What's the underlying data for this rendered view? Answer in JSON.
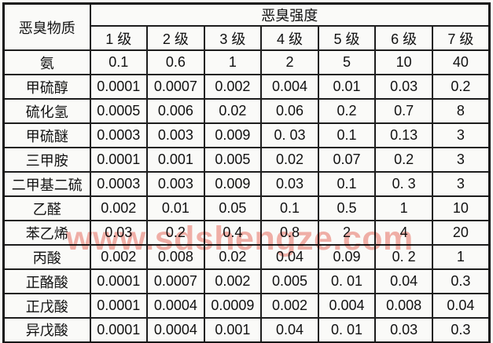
{
  "watermark": {
    "text": "www.sdshengze.com",
    "color": "#f0948a"
  },
  "table": {
    "corner_header": "恶臭物质",
    "group_header": "恶臭强度",
    "level_headers": [
      "1 级",
      "2 级",
      "3 级",
      "4 级",
      "5 级",
      "6 级",
      "7 级"
    ],
    "rows": [
      {
        "substance": "氨",
        "values": [
          "0.1",
          "0.6",
          "1",
          "2",
          "5",
          "10",
          "40"
        ]
      },
      {
        "substance": "甲硫醇",
        "values": [
          "0.0001",
          "0.0007",
          "0.002",
          "0.004",
          "0.01",
          "0.03",
          "0.2"
        ]
      },
      {
        "substance": "硫化氢",
        "values": [
          "0.0005",
          "0.006",
          "0.02",
          "0.06",
          "0.2",
          "0.7",
          "8"
        ]
      },
      {
        "substance": "甲硫醚",
        "values": [
          "0.0003",
          "0.003",
          "0.009",
          "0. 03",
          "0.1",
          "0.13",
          "3"
        ]
      },
      {
        "substance": "三甲胺",
        "values": [
          "0.0001",
          "0.001",
          "0.005",
          "0.02",
          "0.07",
          "0.2",
          "3"
        ]
      },
      {
        "substance": "二甲基二硫",
        "values": [
          "0.0003",
          "0.003",
          "0.009",
          "0.03",
          "0.1",
          "0. 3",
          "3"
        ]
      },
      {
        "substance": "乙醛",
        "values": [
          "0.002",
          "0.01",
          "0.05",
          "0.1",
          "0.5",
          "1",
          "10"
        ]
      },
      {
        "substance": "苯乙烯",
        "values": [
          "0.03",
          "0.2",
          "0.4",
          "0.8",
          "2",
          "4",
          "20"
        ]
      },
      {
        "substance": "丙酸",
        "values": [
          "0.002",
          "0.008",
          "0.02",
          "0.04",
          "0.09",
          "0. 2",
          "1"
        ]
      },
      {
        "substance": "正酪酸",
        "values": [
          "0.0001",
          "0.0007",
          "0.002",
          "0.005",
          "0. 01",
          "0.04",
          "0.3"
        ]
      },
      {
        "substance": "正戊酸",
        "values": [
          "0.0001",
          "0.0004",
          "0.0009",
          "0.002",
          "0.004",
          "0.008",
          "0.04"
        ]
      },
      {
        "substance": "异戊酸",
        "values": [
          "0.0001",
          "0.0004",
          "0.001",
          "0.04",
          "0. 01",
          "0.03",
          "0.3"
        ]
      }
    ]
  }
}
